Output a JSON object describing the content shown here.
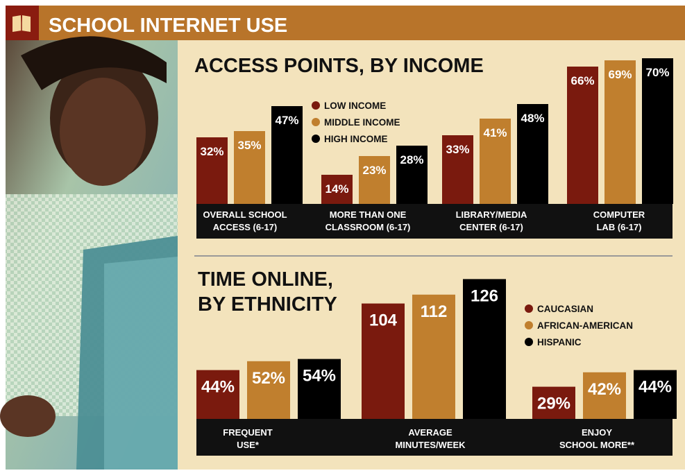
{
  "header": {
    "title": "SCHOOL INTERNET USE",
    "icon": "book-icon",
    "bg_color": "#b8742a"
  },
  "colors": {
    "panel_bg": "#f3e3bc",
    "strip_bg": "#111111",
    "series_1": "#7a1a0e",
    "series_2": "#c07f2e",
    "series_3": "#000000"
  },
  "chart_data": [
    {
      "type": "bar",
      "title": "ACCESS POINTS, BY INCOME",
      "categories": [
        "OVERALL SCHOOL|ACCESS (6-17)",
        "MORE THAN ONE|CLASSROOM (6-17)",
        "LIBRARY/MEDIA|CENTER (6-17)",
        "COMPUTER|LAB (6-17)"
      ],
      "series": [
        {
          "name": "LOW INCOME",
          "values": [
            32,
            14,
            33,
            66
          ],
          "labels": [
            "32%",
            "14%",
            "33%",
            "66%"
          ]
        },
        {
          "name": "MIDDLE INCOME",
          "values": [
            35,
            23,
            41,
            69
          ],
          "labels": [
            "35%",
            "23%",
            "41%",
            "69%"
          ]
        },
        {
          "name": "HIGH INCOME",
          "values": [
            47,
            28,
            48,
            70
          ],
          "labels": [
            "47%",
            "28%",
            "48%",
            "70%"
          ]
        }
      ],
      "legend_position": "top-center",
      "grid": false
    },
    {
      "type": "bar",
      "title": "TIME ONLINE,|BY ETHNICITY",
      "categories": [
        "FREQUENT|USE*",
        "AVERAGE|MINUTES/WEEK",
        "ENJOY|SCHOOL MORE**"
      ],
      "series": [
        {
          "name": "CAUCASIAN",
          "values": [
            44,
            104,
            29
          ],
          "labels": [
            "44%",
            "104",
            "29%"
          ]
        },
        {
          "name": "AFRICAN-AMERICAN",
          "values": [
            52,
            112,
            42
          ],
          "labels": [
            "52%",
            "112",
            "42%"
          ]
        },
        {
          "name": "HISPANIC",
          "values": [
            54,
            126,
            44
          ],
          "labels": [
            "54%",
            "126",
            "44%"
          ]
        }
      ],
      "legend_position": "top-right",
      "grid": false
    }
  ]
}
